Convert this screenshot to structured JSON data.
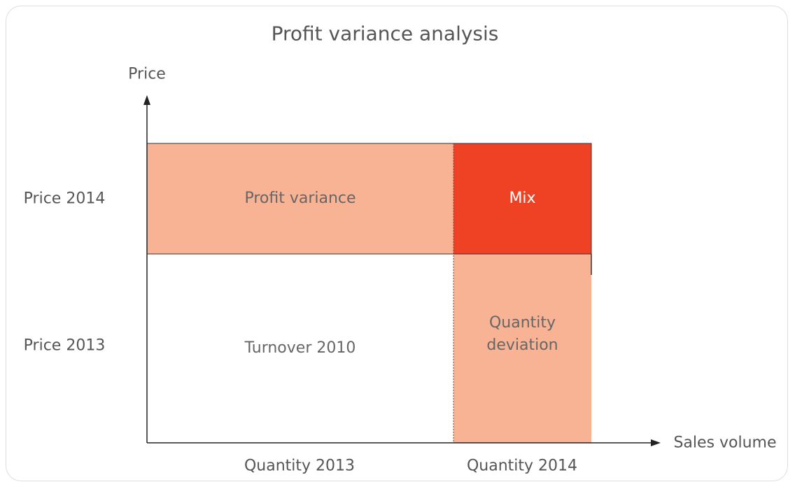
{
  "title": "Profit variance analysis",
  "y_axis_label": "Price",
  "x_axis_label": "Sales volume",
  "rows": [
    "Price 2014",
    "Price 2013"
  ],
  "columns": [
    "Quantity 2013",
    "Quantity 2014"
  ],
  "cells": [
    {
      "label": "Profit variance"
    },
    {
      "label": "Mix"
    },
    {
      "label": "Turnover 2010"
    },
    {
      "label": "Quantity deviation"
    }
  ]
}
